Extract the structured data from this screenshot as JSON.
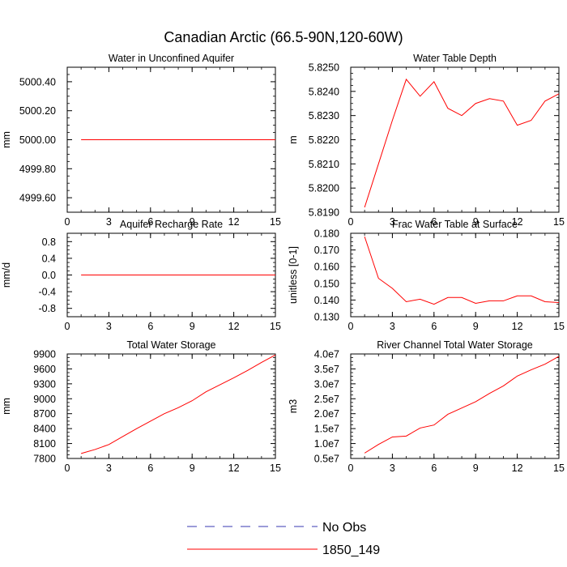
{
  "title": "Canadian Arctic (66.5-90N,120-60W)",
  "colors": {
    "model": "#ff0000",
    "obs": "#3a3ab0",
    "axis": "#000000"
  },
  "legend": {
    "placement": "bottom-center",
    "entries": [
      {
        "label": "No Obs",
        "style": "dashed",
        "color": "#3a3ab0"
      },
      {
        "label": "1850_149",
        "style": "solid",
        "color": "#ff0000"
      }
    ]
  },
  "chart_data": [
    {
      "type": "line",
      "title": "Water in Unconfined Aquifer",
      "ylabel": "mm",
      "xlim": [
        0,
        15
      ],
      "ylim": [
        4999.5,
        5000.5
      ],
      "xticks": [
        0,
        3,
        6,
        9,
        12,
        15
      ],
      "yticks": [
        4999.6,
        4999.8,
        5000.0,
        5000.2,
        5000.4
      ],
      "ytick_labels": [
        "4999.60",
        "4999.80",
        "5000.00",
        "5000.20",
        "5000.40"
      ],
      "series": [
        {
          "name": "1850_149",
          "x": [
            1,
            2,
            3,
            4,
            5,
            6,
            7,
            8,
            9,
            10,
            11,
            12,
            13,
            14,
            15
          ],
          "y": [
            5000.0,
            5000.0,
            5000.0,
            5000.0,
            5000.0,
            5000.0,
            5000.0,
            5000.0,
            5000.0,
            5000.0,
            5000.0,
            5000.0,
            5000.0,
            5000.0,
            5000.0
          ]
        }
      ]
    },
    {
      "type": "line",
      "title": "Water Table Depth",
      "ylabel": "m",
      "xlim": [
        0,
        15
      ],
      "ylim": [
        5.819,
        5.825
      ],
      "xticks": [
        0,
        3,
        6,
        9,
        12,
        15
      ],
      "yticks": [
        5.819,
        5.82,
        5.821,
        5.822,
        5.823,
        5.824,
        5.825
      ],
      "ytick_labels": [
        "5.8190",
        "5.8200",
        "5.8210",
        "5.8220",
        "5.8230",
        "5.8240",
        "5.8250"
      ],
      "series": [
        {
          "name": "1850_149",
          "x": [
            1,
            2,
            3,
            4,
            5,
            6,
            7,
            8,
            9,
            10,
            11,
            12,
            13,
            14,
            15
          ],
          "y": [
            5.8192,
            5.821,
            5.8228,
            5.8245,
            5.8238,
            5.8244,
            5.8233,
            5.823,
            5.8235,
            5.8237,
            5.8236,
            5.8226,
            5.8228,
            5.8236,
            5.8239
          ]
        }
      ]
    },
    {
      "type": "line",
      "title": "Aquifer Recharge Rate",
      "ylabel": "mm/d",
      "xlim": [
        0,
        15
      ],
      "ylim": [
        -1.0,
        1.0
      ],
      "xticks": [
        0,
        3,
        6,
        9,
        12,
        15
      ],
      "yticks": [
        -0.8,
        -0.4,
        0.0,
        0.4,
        0.8
      ],
      "ytick_labels": [
        "-0.8",
        "-0.4",
        "0.0",
        "0.4",
        "0.8"
      ],
      "series": [
        {
          "name": "1850_149",
          "x": [
            1,
            2,
            3,
            4,
            5,
            6,
            7,
            8,
            9,
            10,
            11,
            12,
            13,
            14,
            15
          ],
          "y": [
            0,
            0,
            0,
            0,
            0,
            0,
            0,
            0,
            0,
            0,
            0,
            0,
            0,
            0,
            0
          ]
        }
      ]
    },
    {
      "type": "line",
      "title": "Frac Water Table at Surface",
      "ylabel": "unitless [0-1]",
      "xlim": [
        0,
        15
      ],
      "ylim": [
        0.13,
        0.18
      ],
      "xticks": [
        0,
        3,
        6,
        9,
        12,
        15
      ],
      "yticks": [
        0.13,
        0.14,
        0.15,
        0.16,
        0.17,
        0.18
      ],
      "ytick_labels": [
        "0.130",
        "0.140",
        "0.150",
        "0.160",
        "0.170",
        "0.180"
      ],
      "series": [
        {
          "name": "1850_149",
          "x": [
            1,
            2,
            3,
            4,
            5,
            6,
            7,
            8,
            9,
            10,
            11,
            12,
            13,
            14,
            15
          ],
          "y": [
            0.178,
            0.153,
            0.147,
            0.139,
            0.1405,
            0.1375,
            0.1415,
            0.1415,
            0.138,
            0.1395,
            0.1395,
            0.1425,
            0.1425,
            0.139,
            0.1385
          ]
        }
      ]
    },
    {
      "type": "line",
      "title": "Total Water Storage",
      "ylabel": "mm",
      "xlim": [
        0,
        15
      ],
      "ylim": [
        7800,
        9900
      ],
      "xticks": [
        0,
        3,
        6,
        9,
        12,
        15
      ],
      "yticks": [
        7800,
        8100,
        8400,
        8700,
        9000,
        9300,
        9600,
        9900
      ],
      "ytick_labels": [
        "7800",
        "8100",
        "8400",
        "8700",
        "9000",
        "9300",
        "9600",
        "9900"
      ],
      "series": [
        {
          "name": "1850_149",
          "x": [
            1,
            2,
            3,
            4,
            5,
            6,
            7,
            8,
            9,
            10,
            11,
            12,
            13,
            14,
            15
          ],
          "y": [
            7900,
            7980,
            8080,
            8240,
            8400,
            8550,
            8700,
            8820,
            8960,
            9140,
            9280,
            9420,
            9570,
            9730,
            9880
          ]
        }
      ]
    },
    {
      "type": "line",
      "title": "River Channel Total Water Storage",
      "ylabel": "m3",
      "xlim": [
        0,
        15
      ],
      "ylim": [
        5000000,
        40000000
      ],
      "xticks": [
        0,
        3,
        6,
        9,
        12,
        15
      ],
      "yticks": [
        5000000,
        10000000,
        15000000,
        20000000,
        25000000,
        30000000,
        35000000,
        40000000
      ],
      "ytick_labels": [
        "0.5e7",
        "1.0e7",
        "1.5e7",
        "2.0e7",
        "2.5e7",
        "3.0e7",
        "3.5e7",
        "4.0e7"
      ],
      "series": [
        {
          "name": "1850_149",
          "x": [
            1,
            2,
            3,
            4,
            5,
            6,
            7,
            8,
            9,
            10,
            11,
            12,
            13,
            14,
            15
          ],
          "y": [
            6800000,
            9700000,
            12200000,
            12500000,
            15200000,
            16200000,
            19800000,
            21900000,
            24000000,
            26800000,
            29300000,
            32600000,
            34700000,
            36600000,
            39200000
          ]
        }
      ]
    }
  ]
}
